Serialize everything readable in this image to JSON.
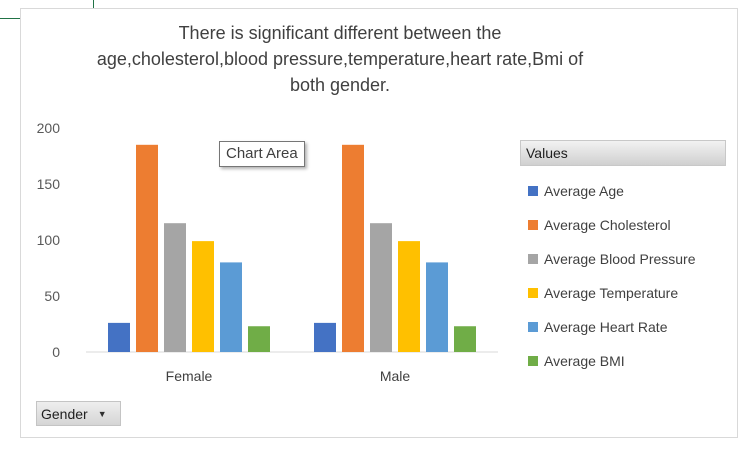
{
  "chart_data": {
    "type": "bar",
    "title": "There is significant different between the age,cholesterol,blood pressure,temperature,heart rate,Bmi of both gender.",
    "title_lines": [
      "There is significant different between the",
      "age,cholesterol,blood pressure,temperature,heart rate,Bmi of",
      "both gender."
    ],
    "categories": [
      "Female",
      "Male"
    ],
    "series": [
      {
        "name": "Average Age",
        "values": [
          26,
          26
        ],
        "color": "#4472c4"
      },
      {
        "name": "Average Cholesterol",
        "values": [
          185,
          185
        ],
        "color": "#ed7d31"
      },
      {
        "name": "Average Blood Pressure",
        "values": [
          115,
          115
        ],
        "color": "#a5a5a5"
      },
      {
        "name": "Average Temperature",
        "values": [
          99,
          99
        ],
        "color": "#ffc000"
      },
      {
        "name": "Average Heart Rate",
        "values": [
          80,
          80
        ],
        "color": "#5b9bd5"
      },
      {
        "name": "Average BMI",
        "values": [
          23,
          23
        ],
        "color": "#70ad47"
      }
    ],
    "ylim": [
      0,
      200
    ],
    "yticks": [
      "0",
      "50",
      "100",
      "150",
      "200"
    ],
    "grid": false,
    "legend_title": "Values",
    "legend_position": "right"
  },
  "tooltip": "Chart Area",
  "field_button": {
    "label": "Gender"
  }
}
